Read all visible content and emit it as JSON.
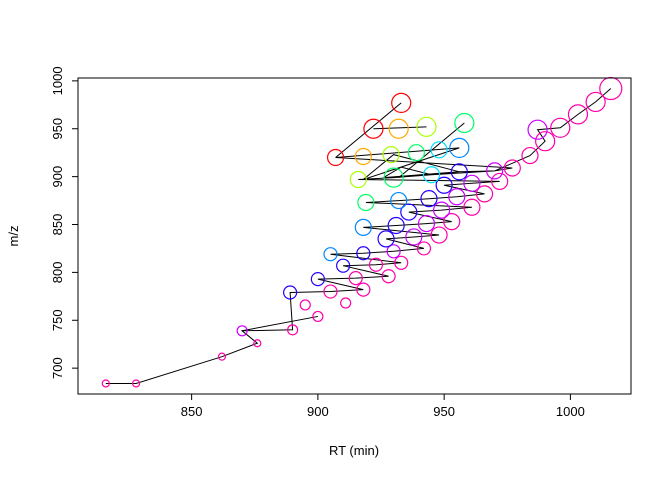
{
  "chart_data": {
    "type": "scatter",
    "title": "",
    "xlabel": "RT (min)",
    "ylabel": "m/z",
    "xlim": [
      805,
      1024
    ],
    "ylim": [
      673,
      1003
    ],
    "xticks": [
      850,
      900,
      950,
      1000
    ],
    "yticks": [
      700,
      750,
      800,
      850,
      900,
      950,
      1000
    ],
    "grid": false,
    "legend": "none",
    "points": [
      {
        "x": 816,
        "y": 684,
        "s": 1,
        "c": "#FF00AA"
      },
      {
        "x": 828,
        "y": 684,
        "s": 1,
        "c": "#FF00AA"
      },
      {
        "x": 862,
        "y": 712,
        "s": 1,
        "c": "#FF00AA"
      },
      {
        "x": 876,
        "y": 726,
        "s": 1,
        "c": "#FF00AA"
      },
      {
        "x": 870,
        "y": 739,
        "s": 2,
        "c": "#CC00FF"
      },
      {
        "x": 890,
        "y": 740,
        "s": 2,
        "c": "#FF00AA"
      },
      {
        "x": 900,
        "y": 754,
        "s": 2,
        "c": "#FF00AA"
      },
      {
        "x": 911,
        "y": 768,
        "s": 2,
        "c": "#FF00AA"
      },
      {
        "x": 895,
        "y": 766,
        "s": 2,
        "c": "#FF00AA"
      },
      {
        "x": 889,
        "y": 779,
        "s": 3,
        "c": "#2200FF"
      },
      {
        "x": 905,
        "y": 780,
        "s": 3,
        "c": "#FF00AA"
      },
      {
        "x": 918,
        "y": 782,
        "s": 3,
        "c": "#FF00AA"
      },
      {
        "x": 900,
        "y": 793,
        "s": 3,
        "c": "#2200FF"
      },
      {
        "x": 915,
        "y": 794,
        "s": 3,
        "c": "#FF00AA"
      },
      {
        "x": 928,
        "y": 796,
        "s": 3,
        "c": "#FF00AA"
      },
      {
        "x": 910,
        "y": 807,
        "s": 3,
        "c": "#2200FF"
      },
      {
        "x": 923,
        "y": 808,
        "s": 3,
        "c": "#FF00AA"
      },
      {
        "x": 933,
        "y": 810,
        "s": 3,
        "c": "#FF00AA"
      },
      {
        "x": 905,
        "y": 819,
        "s": 3,
        "c": "#0088FF"
      },
      {
        "x": 918,
        "y": 820,
        "s": 3,
        "c": "#2200FF"
      },
      {
        "x": 930,
        "y": 822,
        "s": 3,
        "c": "#CC00FF"
      },
      {
        "x": 942,
        "y": 825,
        "s": 3,
        "c": "#FF00AA"
      },
      {
        "x": 927,
        "y": 835,
        "s": 4,
        "c": "#2200FF"
      },
      {
        "x": 938,
        "y": 837,
        "s": 4,
        "c": "#CC00FF"
      },
      {
        "x": 948,
        "y": 839,
        "s": 4,
        "c": "#FF00AA"
      },
      {
        "x": 918,
        "y": 847,
        "s": 4,
        "c": "#0088FF"
      },
      {
        "x": 931,
        "y": 849,
        "s": 4,
        "c": "#2200FF"
      },
      {
        "x": 943,
        "y": 851,
        "s": 4,
        "c": "#CC00FF"
      },
      {
        "x": 953,
        "y": 853,
        "s": 4,
        "c": "#FF00AA"
      },
      {
        "x": 936,
        "y": 863,
        "s": 4,
        "c": "#2200FF"
      },
      {
        "x": 949,
        "y": 865,
        "s": 4,
        "c": "#CC00FF"
      },
      {
        "x": 961,
        "y": 868,
        "s": 4,
        "c": "#FF00AA"
      },
      {
        "x": 919,
        "y": 873,
        "s": 4,
        "c": "#00FF66"
      },
      {
        "x": 932,
        "y": 875,
        "s": 4,
        "c": "#0088FF"
      },
      {
        "x": 944,
        "y": 877,
        "s": 4,
        "c": "#2200FF"
      },
      {
        "x": 955,
        "y": 879,
        "s": 4,
        "c": "#CC00FF"
      },
      {
        "x": 966,
        "y": 882,
        "s": 4,
        "c": "#FF00AA"
      },
      {
        "x": 950,
        "y": 891,
        "s": 4,
        "c": "#2200FF"
      },
      {
        "x": 961,
        "y": 893,
        "s": 4,
        "c": "#CC00FF"
      },
      {
        "x": 972,
        "y": 895,
        "s": 4,
        "c": "#FF00AA"
      },
      {
        "x": 916,
        "y": 897,
        "s": 4,
        "c": "#AAFF00"
      },
      {
        "x": 930,
        "y": 899,
        "s": 5,
        "c": "#00FF66"
      },
      {
        "x": 945,
        "y": 902,
        "s": 4,
        "c": "#00DDFF"
      },
      {
        "x": 956,
        "y": 905,
        "s": 4,
        "c": "#2200FF"
      },
      {
        "x": 970,
        "y": 906,
        "s": 4,
        "c": "#CC00FF"
      },
      {
        "x": 977,
        "y": 909,
        "s": 4,
        "c": "#FF00AA"
      },
      {
        "x": 907,
        "y": 920,
        "s": 4,
        "c": "#FF0000"
      },
      {
        "x": 918,
        "y": 921,
        "s": 4,
        "c": "#FFAA00"
      },
      {
        "x": 929,
        "y": 923,
        "s": 4,
        "c": "#AAFF00"
      },
      {
        "x": 939,
        "y": 925,
        "s": 4,
        "c": "#00FF66"
      },
      {
        "x": 948,
        "y": 928,
        "s": 4,
        "c": "#00DDFF"
      },
      {
        "x": 956,
        "y": 930,
        "s": 5,
        "c": "#0088FF"
      },
      {
        "x": 984,
        "y": 922,
        "s": 4,
        "c": "#FF00AA"
      },
      {
        "x": 990,
        "y": 937,
        "s": 5,
        "c": "#FF00AA"
      },
      {
        "x": 922,
        "y": 950,
        "s": 5,
        "c": "#FF0000"
      },
      {
        "x": 932,
        "y": 950,
        "s": 5,
        "c": "#FFAA00"
      },
      {
        "x": 943,
        "y": 952,
        "s": 5,
        "c": "#AAFF00"
      },
      {
        "x": 958,
        "y": 956,
        "s": 5,
        "c": "#00FF66"
      },
      {
        "x": 987,
        "y": 949,
        "s": 5,
        "c": "#CC00FF"
      },
      {
        "x": 996,
        "y": 951,
        "s": 5,
        "c": "#FF00AA"
      },
      {
        "x": 1003,
        "y": 965,
        "s": 5,
        "c": "#FF00AA"
      },
      {
        "x": 1010,
        "y": 978,
        "s": 5,
        "c": "#FF00AA"
      },
      {
        "x": 1016,
        "y": 992,
        "s": 6,
        "c": "#FF00AA"
      },
      {
        "x": 933,
        "y": 977,
        "s": 5,
        "c": "#FF0000"
      }
    ],
    "path": [
      [
        816,
        684
      ],
      [
        828,
        684
      ],
      [
        862,
        712
      ],
      [
        876,
        726
      ],
      [
        870,
        739
      ],
      [
        890,
        740
      ],
      [
        889,
        779
      ],
      [
        905,
        780
      ],
      [
        918,
        782
      ],
      [
        900,
        793
      ],
      [
        915,
        794
      ],
      [
        928,
        796
      ],
      [
        910,
        807
      ],
      [
        923,
        808
      ],
      [
        933,
        810
      ],
      [
        905,
        819
      ],
      [
        918,
        820
      ],
      [
        930,
        822
      ],
      [
        942,
        825
      ],
      [
        927,
        835
      ],
      [
        938,
        837
      ],
      [
        948,
        839
      ],
      [
        918,
        847
      ],
      [
        931,
        849
      ],
      [
        943,
        851
      ],
      [
        953,
        853
      ],
      [
        936,
        863
      ],
      [
        949,
        865
      ],
      [
        961,
        868
      ],
      [
        919,
        873
      ],
      [
        932,
        875
      ],
      [
        944,
        877
      ],
      [
        955,
        879
      ],
      [
        966,
        882
      ],
      [
        950,
        891
      ],
      [
        961,
        893
      ],
      [
        972,
        895
      ],
      [
        916,
        897
      ],
      [
        930,
        899
      ],
      [
        945,
        902
      ],
      [
        956,
        905
      ],
      [
        970,
        906
      ],
      [
        977,
        909
      ],
      [
        907,
        920
      ],
      [
        956,
        930
      ],
      [
        918,
        897
      ],
      [
        930,
        923
      ],
      [
        956,
        905
      ],
      [
        926,
        899
      ],
      [
        933,
        910
      ],
      [
        945,
        902
      ],
      [
        970,
        906
      ],
      [
        984,
        922
      ],
      [
        990,
        937
      ],
      [
        987,
        949
      ],
      [
        996,
        951
      ],
      [
        1003,
        965
      ],
      [
        1010,
        978
      ],
      [
        1016,
        992
      ]
    ],
    "extra_segments": [
      [
        [
          907,
          920
        ],
        [
          933,
          977
        ]
      ],
      [
        [
          922,
          950
        ],
        [
          943,
          952
        ]
      ],
      [
        [
          932,
          899
        ],
        [
          958,
          956
        ]
      ],
      [
        [
          870,
          739
        ],
        [
          900,
          754
        ]
      ]
    ]
  }
}
